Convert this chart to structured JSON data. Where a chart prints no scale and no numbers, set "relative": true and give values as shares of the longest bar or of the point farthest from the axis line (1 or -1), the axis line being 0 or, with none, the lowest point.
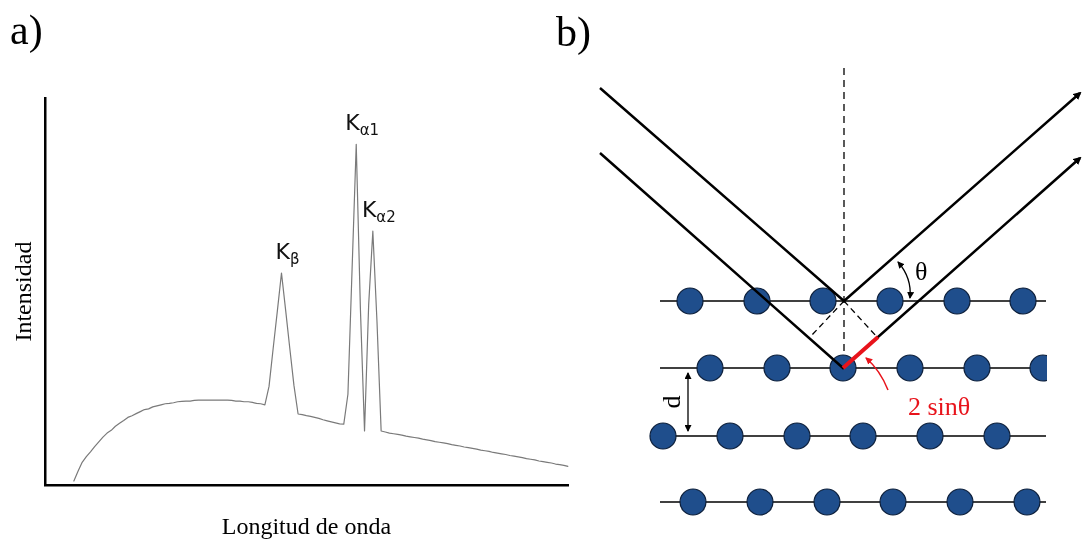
{
  "chart_data": [
    {
      "type": "line",
      "title": "a)",
      "xlabel": "Longitud de onda",
      "ylabel": "Intensidad",
      "relative": true,
      "grid": false,
      "legend": false,
      "categories": [
        null,
        null,
        null,
        null,
        null,
        null,
        null,
        null,
        null,
        null,
        null,
        null,
        null,
        null,
        null,
        null,
        null,
        null,
        null,
        null,
        null,
        null,
        null,
        null,
        null,
        null,
        null,
        null,
        null,
        null,
        null,
        null,
        null,
        null,
        null,
        null,
        null,
        null,
        null,
        null,
        null,
        null,
        null,
        null,
        null,
        null,
        null,
        null,
        null,
        null,
        null,
        null,
        null,
        null,
        null,
        null,
        null,
        null,
        null,
        null,
        null,
        null,
        null,
        null,
        null,
        null,
        null,
        null,
        null,
        null,
        null,
        null,
        null,
        null,
        null,
        null,
        null,
        null,
        null,
        null,
        null,
        null,
        null,
        null,
        null,
        null,
        null,
        null,
        null,
        null,
        null,
        null,
        null,
        null,
        null,
        null,
        null,
        null,
        null,
        null,
        null,
        null,
        null,
        null,
        null,
        null,
        null,
        null,
        null,
        null,
        null,
        null,
        null,
        null,
        null,
        null,
        null,
        null,
        null,
        null,
        null,
        null,
        null,
        null,
        null,
        null,
        null
      ],
      "series": [
        {
          "color": "#7a7a7a",
          "values": [
            null,
            null,
            null,
            null,
            null,
            null,
            null,
            0.011,
            0.04,
            0.066,
            0.083,
            0.097,
            0.112,
            0.126,
            0.14,
            0.152,
            0.16,
            0.172,
            0.181,
            0.189,
            0.198,
            0.203,
            0.209,
            0.215,
            0.221,
            0.223,
            0.229,
            0.232,
            0.235,
            0.238,
            0.239,
            0.241,
            0.244,
            0.245,
            0.246,
            0.246,
            0.248,
            0.249,
            0.249,
            0.249,
            0.249,
            0.249,
            0.249,
            0.249,
            0.249,
            0.248,
            0.246,
            0.246,
            0.244,
            0.244,
            0.242,
            0.239,
            0.238,
            0.235,
            0.289,
            0.401,
            0.51,
            0.622,
            0.513,
            0.401,
            0.292,
            0.208,
            0.206,
            0.203,
            0.201,
            0.198,
            0.195,
            0.191,
            0.188,
            0.185,
            0.182,
            0.179,
            0.178,
            0.266,
            0.633,
            1,
            0.519,
            0.158,
            0.53,
            0.745,
            0.479,
            0.158,
            0.155,
            0.152,
            0.15,
            0.148,
            0.146,
            0.143,
            0.141,
            0.139,
            0.137,
            0.134,
            0.132,
            0.13,
            0.127,
            0.125,
            0.123,
            0.121,
            0.118,
            0.116,
            0.114,
            0.111,
            0.109,
            0.107,
            0.105,
            0.102,
            0.1,
            0.098,
            0.095,
            0.093,
            0.091,
            0.089,
            0.086,
            0.084,
            0.082,
            0.08,
            0.077,
            0.075,
            0.073,
            0.07,
            0.068,
            0.066,
            0.064,
            0.061,
            0.059,
            0.057,
            0.054
          ]
        }
      ],
      "annotations": [
        "K$_{β}$",
        "K$_{α1}$",
        "K$_{α2}$"
      ]
    },
    {
      "type": "other",
      "title": "b)",
      "annotations": [
        "θ",
        "d",
        "2 sinθ"
      ]
    }
  ]
}
